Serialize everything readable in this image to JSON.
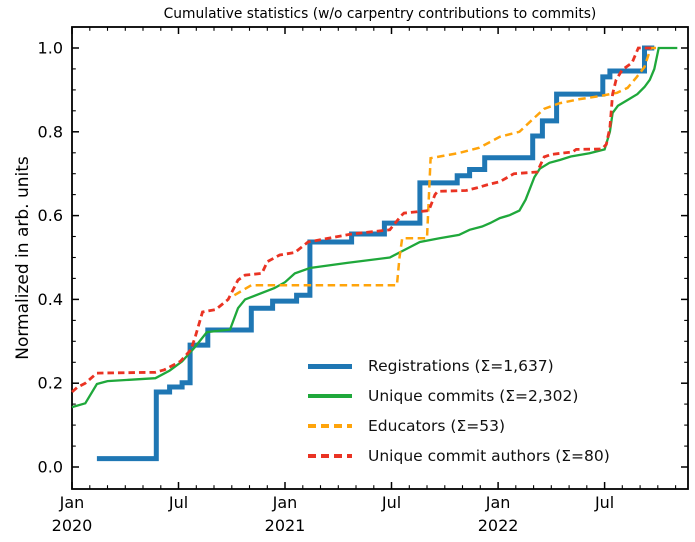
{
  "chart_data": {
    "type": "line",
    "title": "Cumulative statistics (w/o carpentry contributions to commits)",
    "ylabel": "Normalized in arb. units",
    "xlabel": "",
    "grid": false,
    "legend_position": "lower right inside, no frame",
    "x_axis": {
      "unit": "months since Jan 2020",
      "range": [
        0,
        34.7
      ],
      "minor_tick_every_months": 1,
      "major_ticks": [
        {
          "m": 0,
          "month": "Jan",
          "year": "2020"
        },
        {
          "m": 6,
          "month": "Jul",
          "year": ""
        },
        {
          "m": 12,
          "month": "Jan",
          "year": "2021"
        },
        {
          "m": 18,
          "month": "Jul",
          "year": ""
        },
        {
          "m": 24,
          "month": "Jan",
          "year": "2022"
        },
        {
          "m": 30,
          "month": "Jul",
          "year": ""
        }
      ]
    },
    "y_axis": {
      "range": [
        0.0,
        1.0
      ],
      "major_tick_step": 0.2,
      "minor_tick_step": 0.05,
      "tick_labels": [
        "0.0",
        "0.2",
        "0.4",
        "0.6",
        "0.8",
        "1.0"
      ]
    },
    "series": [
      {
        "name": "Registrations",
        "legend": "Registrations  (Σ=1,637)",
        "total": "1,637",
        "color": "#1f77b4",
        "style": "solid",
        "dash": "",
        "width": 5,
        "interp": "step",
        "points": [
          [
            1.4,
            0.02
          ],
          [
            4.75,
            0.179
          ],
          [
            5.5,
            0.191
          ],
          [
            6.2,
            0.201
          ],
          [
            6.65,
            0.291
          ],
          [
            7.65,
            0.327
          ],
          [
            10.1,
            0.379
          ],
          [
            11.3,
            0.396
          ],
          [
            12.65,
            0.41
          ],
          [
            13.4,
            0.537
          ],
          [
            15.75,
            0.556
          ],
          [
            17.6,
            0.582
          ],
          [
            19.6,
            0.678
          ],
          [
            21.7,
            0.695
          ],
          [
            22.4,
            0.71
          ],
          [
            23.25,
            0.738
          ],
          [
            25.95,
            0.79
          ],
          [
            26.5,
            0.826
          ],
          [
            27.3,
            0.89
          ],
          [
            29.9,
            0.931
          ],
          [
            30.3,
            0.945
          ],
          [
            32.25,
            1.0
          ],
          [
            32.8,
            1.0
          ]
        ]
      },
      {
        "name": "Unique commits",
        "legend": "Unique commits (Σ=2,302)",
        "total": "2,302",
        "color": "#1fa83b",
        "style": "solid",
        "dash": "",
        "width": 2.3,
        "interp": "linear",
        "points": [
          [
            0,
            0.143
          ],
          [
            0.75,
            0.152
          ],
          [
            1.4,
            0.198
          ],
          [
            2.0,
            0.205
          ],
          [
            4.7,
            0.212
          ],
          [
            5.5,
            0.23
          ],
          [
            6.2,
            0.252
          ],
          [
            6.9,
            0.285
          ],
          [
            7.6,
            0.322
          ],
          [
            8.9,
            0.328
          ],
          [
            9.35,
            0.379
          ],
          [
            9.75,
            0.4
          ],
          [
            11.4,
            0.427
          ],
          [
            12.0,
            0.441
          ],
          [
            12.55,
            0.462
          ],
          [
            13.4,
            0.475
          ],
          [
            15.5,
            0.487
          ],
          [
            17.9,
            0.5
          ],
          [
            18.45,
            0.512
          ],
          [
            19.6,
            0.537
          ],
          [
            20.7,
            0.546
          ],
          [
            21.8,
            0.554
          ],
          [
            22.4,
            0.566
          ],
          [
            23.1,
            0.574
          ],
          [
            23.55,
            0.582
          ],
          [
            24.1,
            0.594
          ],
          [
            24.65,
            0.601
          ],
          [
            25.2,
            0.612
          ],
          [
            25.55,
            0.638
          ],
          [
            25.8,
            0.665
          ],
          [
            26.05,
            0.692
          ],
          [
            26.35,
            0.712
          ],
          [
            26.9,
            0.726
          ],
          [
            27.5,
            0.733
          ],
          [
            28.1,
            0.741
          ],
          [
            29.15,
            0.749
          ],
          [
            30.0,
            0.758
          ],
          [
            30.3,
            0.8
          ],
          [
            30.45,
            0.845
          ],
          [
            30.75,
            0.862
          ],
          [
            31.3,
            0.876
          ],
          [
            31.85,
            0.89
          ],
          [
            32.25,
            0.907
          ],
          [
            32.55,
            0.924
          ],
          [
            32.8,
            0.95
          ],
          [
            33.05,
            1.0
          ],
          [
            34.1,
            1.0
          ]
        ]
      },
      {
        "name": "Educators",
        "legend": "Educators (Σ=53)",
        "total": "53",
        "color": "#ffa40b",
        "style": "dashed",
        "dash": "7.5 4.5",
        "width": 2.5,
        "interp": "linear",
        "points": [
          [
            9.15,
            0.41
          ],
          [
            10.1,
            0.434
          ],
          [
            18.3,
            0.434
          ],
          [
            18.45,
            0.5
          ],
          [
            18.6,
            0.546
          ],
          [
            20.0,
            0.546
          ],
          [
            20.2,
            0.737
          ],
          [
            21.85,
            0.75
          ],
          [
            22.95,
            0.762
          ],
          [
            24.1,
            0.788
          ],
          [
            25.2,
            0.8
          ],
          [
            25.9,
            0.828
          ],
          [
            26.6,
            0.855
          ],
          [
            27.45,
            0.868
          ],
          [
            28.6,
            0.878
          ],
          [
            29.7,
            0.885
          ],
          [
            30.7,
            0.893
          ],
          [
            31.3,
            0.905
          ],
          [
            31.8,
            0.93
          ],
          [
            32.25,
            0.955
          ],
          [
            32.6,
            1.0
          ],
          [
            32.9,
            1.0
          ]
        ]
      },
      {
        "name": "Unique commit authors",
        "legend": "Unique commit authors (Σ=80)",
        "total": "80",
        "color": "#ea3323",
        "style": "dashed",
        "dash": "6.5 4",
        "width": 2.8,
        "interp": "linear",
        "points": [
          [
            0,
            0.179
          ],
          [
            0.3,
            0.19
          ],
          [
            0.75,
            0.2
          ],
          [
            1.4,
            0.224
          ],
          [
            4.7,
            0.226
          ],
          [
            5.2,
            0.232
          ],
          [
            6.1,
            0.252
          ],
          [
            6.7,
            0.28
          ],
          [
            6.95,
            0.312
          ],
          [
            7.35,
            0.37
          ],
          [
            8.1,
            0.376
          ],
          [
            8.8,
            0.4
          ],
          [
            9.35,
            0.446
          ],
          [
            9.75,
            0.458
          ],
          [
            10.7,
            0.462
          ],
          [
            11.0,
            0.49
          ],
          [
            11.7,
            0.506
          ],
          [
            12.55,
            0.512
          ],
          [
            13.3,
            0.537
          ],
          [
            15.75,
            0.556
          ],
          [
            17.9,
            0.566
          ],
          [
            18.55,
            0.6
          ],
          [
            18.7,
            0.606
          ],
          [
            20.1,
            0.612
          ],
          [
            20.45,
            0.65
          ],
          [
            20.6,
            0.658
          ],
          [
            22.2,
            0.66
          ],
          [
            22.8,
            0.666
          ],
          [
            23.35,
            0.673
          ],
          [
            24.1,
            0.681
          ],
          [
            24.9,
            0.7
          ],
          [
            26.2,
            0.704
          ],
          [
            26.6,
            0.74
          ],
          [
            27.0,
            0.746
          ],
          [
            28.2,
            0.752
          ],
          [
            28.4,
            0.758
          ],
          [
            29.85,
            0.759
          ],
          [
            30.1,
            0.77
          ],
          [
            30.3,
            0.81
          ],
          [
            30.45,
            0.89
          ],
          [
            30.65,
            0.924
          ],
          [
            31.0,
            0.948
          ],
          [
            31.55,
            0.965
          ],
          [
            31.9,
            1.0
          ],
          [
            32.8,
            1.0
          ]
        ]
      }
    ]
  }
}
